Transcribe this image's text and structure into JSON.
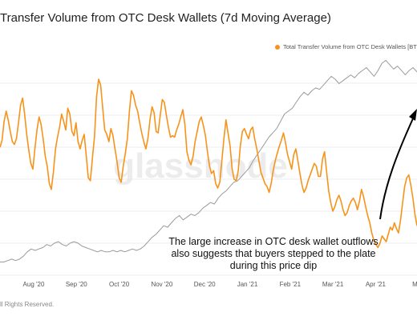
{
  "chart_data": {
    "type": "line",
    "title": "Transfer Volume from OTC Desk Wallets (7d Moving Average)",
    "legend": "Total Transfer Volume from OTC Desk Wallets [BT",
    "legend_position": "top-right",
    "xtick_labels": [
      "Aug '20",
      "Sep '20",
      "Oct '20",
      "Nov '20",
      "Dec '20",
      "Jan '21",
      "Feb '21",
      "Mar '21",
      "Apr '21",
      "May"
    ],
    "watermark": "glassnode",
    "annotation": [
      "The large increase in OTC desk wallet outflows",
      "also suggests that buyers stepped to the plate",
      "during this price dip"
    ],
    "footer": "ll Rights Reserved.",
    "grid": "horizontal",
    "colors": {
      "volume": "#f7931a",
      "price": "#9a9a9a",
      "arrow": "#000000",
      "grid": "#ececec"
    },
    "series": [
      {
        "key": "volume",
        "values": [
          0.87,
          0.92,
          1.05,
          1.12,
          1.06,
          0.98,
          0.91,
          0.89,
          0.93,
          1.04,
          1.16,
          1.21,
          1.1,
          0.96,
          0.85,
          0.76,
          0.72,
          0.86,
          0.99,
          1.08,
          1.03,
          0.93,
          0.81,
          0.74,
          0.62,
          0.58,
          0.7,
          0.86,
          0.94,
          1.01,
          1.1,
          1.05,
          0.99,
          1.14,
          1.1,
          0.98,
          0.95,
          1.04,
          0.91,
          0.86,
          0.92,
          0.96,
          0.81,
          0.66,
          0.64,
          0.8,
          0.94,
          1.22,
          1.34,
          1.3,
          1.14,
          0.99,
          0.96,
          0.91,
          1.0,
          0.95,
          0.86,
          0.77,
          0.66,
          0.63,
          0.74,
          0.83,
          0.93,
          1.12,
          1.26,
          1.23,
          1.16,
          1.12,
          1.04,
          0.97,
          0.91,
          0.86,
          0.93,
          1.06,
          1.15,
          1.11,
          0.98,
          0.97,
          1.09,
          1.2,
          1.18,
          1.09,
          1.01,
          0.94,
          0.95,
          0.94,
          0.99,
          1.03,
          1.08,
          1.13,
          1.03,
          0.84,
          0.78,
          0.75,
          0.81,
          0.91,
          0.98,
          1.05,
          1.08,
          1.02,
          0.95,
          0.84,
          0.74,
          0.69,
          0.71,
          0.62,
          0.59,
          0.63,
          0.78,
          0.93,
          1.06,
          0.97,
          0.88,
          0.72,
          0.65,
          0.64,
          0.71,
          0.88,
          0.98,
          1.0,
          0.96,
          0.93,
          0.99,
          1.01,
          0.93,
          0.86,
          0.78,
          0.7,
          0.66,
          0.62,
          0.6,
          0.56,
          0.62,
          0.71,
          0.78,
          0.83,
          0.88,
          0.92,
          0.97,
          0.9,
          0.82,
          0.77,
          0.72,
          0.82,
          0.86,
          0.78,
          0.69,
          0.61,
          0.56,
          0.59,
          0.64,
          0.68,
          0.72,
          0.76,
          0.74,
          0.67,
          0.67,
          0.79,
          0.84,
          0.7,
          0.57,
          0.49,
          0.43,
          0.46,
          0.51,
          0.54,
          0.5,
          0.44,
          0.4,
          0.42,
          0.47,
          0.5,
          0.52,
          0.49,
          0.44,
          0.5,
          0.58,
          0.53,
          0.46,
          0.4,
          0.35,
          0.28,
          0.23,
          0.2,
          0.18,
          0.21,
          0.26,
          0.24,
          0.22,
          0.27,
          0.32,
          0.3,
          0.35,
          0.31,
          0.28,
          0.37,
          0.49,
          0.6,
          0.66,
          0.68,
          0.61,
          0.52,
          0.41,
          0.33
        ]
      },
      {
        "key": "price",
        "values": [
          0.08,
          0.08,
          0.09,
          0.1,
          0.09,
          0.1,
          0.12,
          0.15,
          0.17,
          0.16,
          0.17,
          0.18,
          0.2,
          0.19,
          0.21,
          0.22,
          0.2,
          0.19,
          0.21,
          0.22,
          0.21,
          0.19,
          0.18,
          0.17,
          0.16,
          0.15,
          0.16,
          0.15,
          0.15,
          0.16,
          0.15,
          0.16,
          0.15,
          0.16,
          0.17,
          0.16,
          0.17,
          0.19,
          0.22,
          0.25,
          0.27,
          0.3,
          0.33,
          0.32,
          0.35,
          0.38,
          0.4,
          0.37,
          0.39,
          0.41,
          0.4,
          0.42,
          0.45,
          0.47,
          0.49,
          0.48,
          0.52,
          0.55,
          0.57,
          0.6,
          0.63,
          0.64,
          0.67,
          0.7,
          0.73,
          0.78,
          0.82,
          0.86,
          0.9,
          0.94,
          0.97,
          1.0,
          1.05,
          1.1,
          1.12,
          1.14,
          1.18,
          1.22,
          1.25,
          1.23,
          1.26,
          1.28,
          1.27,
          1.3,
          1.33,
          1.36,
          1.34,
          1.31,
          1.33,
          1.35,
          1.37,
          1.35,
          1.38,
          1.4,
          1.42,
          1.39,
          1.36,
          1.4,
          1.45,
          1.47,
          1.44,
          1.41,
          1.43,
          1.4,
          1.37,
          1.4,
          1.42,
          1.39
        ]
      }
    ]
  }
}
